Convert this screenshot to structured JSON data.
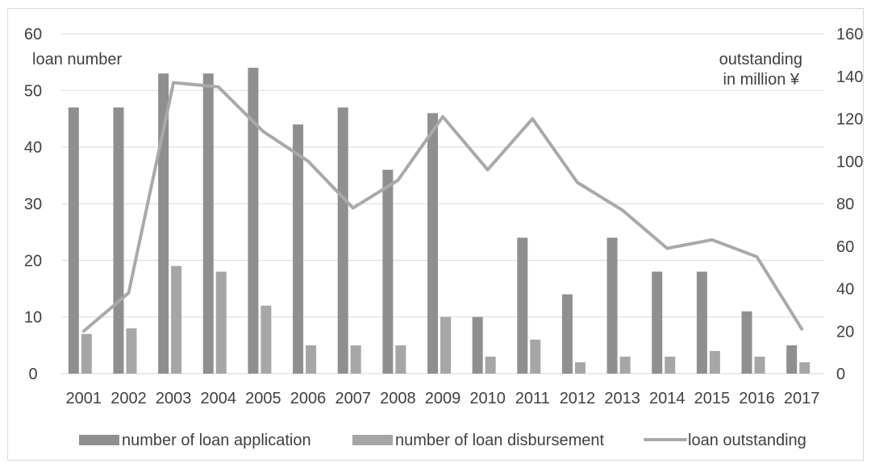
{
  "chart_data": {
    "type": "bar",
    "categories": [
      "2001",
      "2002",
      "2003",
      "2004",
      "2005",
      "2006",
      "2007",
      "2008",
      "2009",
      "2010",
      "2011",
      "2012",
      "2013",
      "2014",
      "2015",
      "2016",
      "2017"
    ],
    "series": [
      {
        "name": "number of loan application",
        "type": "bar",
        "axis": "left",
        "color": "#8f8f8f",
        "values": [
          47,
          47,
          53,
          53,
          54,
          44,
          47,
          36,
          46,
          10,
          24,
          14,
          24,
          18,
          18,
          11,
          5
        ]
      },
      {
        "name": "number of loan disbursement",
        "type": "bar",
        "axis": "left",
        "color": "#a6a6a6",
        "values": [
          7,
          8,
          19,
          18,
          12,
          5,
          5,
          5,
          10,
          3,
          6,
          2,
          3,
          3,
          4,
          3,
          2
        ]
      },
      {
        "name": "loan outstanding",
        "type": "line",
        "axis": "right",
        "color": "#a9a9a9",
        "values": [
          20,
          38,
          137,
          135,
          114,
          100,
          78,
          91,
          121,
          96,
          120,
          90,
          77,
          59,
          63,
          55,
          21
        ]
      }
    ],
    "ylabel": "loan number",
    "y2label": [
      "outstanding",
      "in million ¥"
    ],
    "ylim": [
      0,
      60
    ],
    "y2lim": [
      0,
      160
    ],
    "y_ticks": [
      0,
      10,
      20,
      30,
      40,
      50,
      60
    ],
    "y2_ticks": [
      0,
      20,
      40,
      60,
      80,
      100,
      120,
      140,
      160
    ],
    "grid": true,
    "legend": "bottom"
  }
}
